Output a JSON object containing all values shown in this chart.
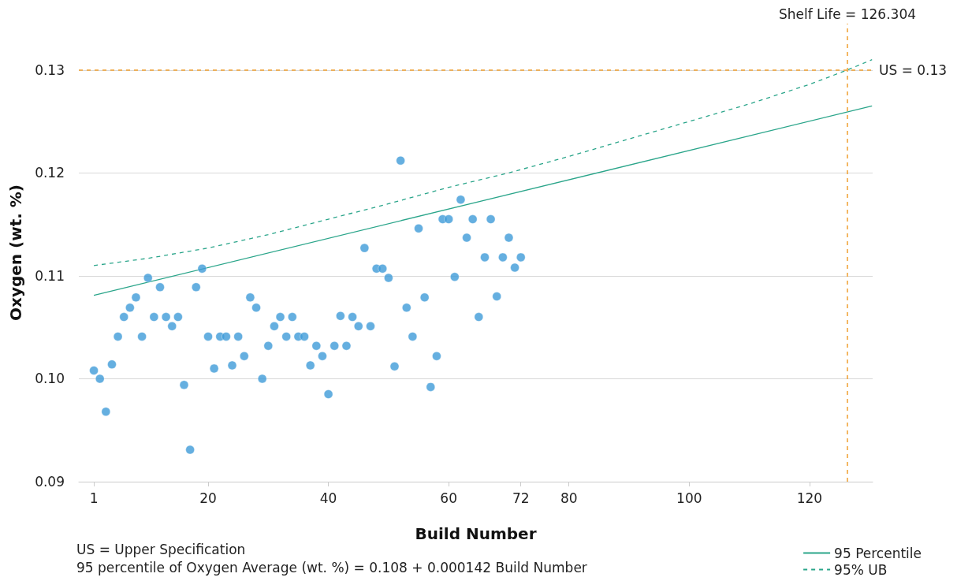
{
  "chart_data": {
    "type": "scatter",
    "xlabel": "Build Number",
    "ylabel": "Oxygen (wt. %)",
    "xlim": [
      -1.5,
      130.5
    ],
    "xticks": [
      1,
      20,
      40,
      60,
      72,
      80,
      100,
      120
    ],
    "ylim": [
      0.09,
      0.1345
    ],
    "yticks": [
      0.09,
      {
        "value": 0.1,
        "label": "0.10"
      },
      0.11,
      0.12,
      0.13
    ],
    "grid": "y",
    "legend": "bottom right",
    "series": [
      {
        "marker": "circle",
        "color": "#3f9bd8",
        "x": [
          1,
          2,
          3,
          4,
          5,
          6,
          7,
          8,
          9,
          10,
          11,
          12,
          13,
          14,
          15,
          16,
          17,
          18,
          19,
          20,
          21,
          22,
          23,
          24,
          25,
          26,
          27,
          28,
          29,
          30,
          31,
          32,
          33,
          34,
          35,
          36,
          37,
          38,
          39,
          40,
          41,
          42,
          43,
          44,
          45,
          46,
          47,
          48,
          49,
          50,
          51,
          52,
          53,
          54,
          55,
          56,
          57,
          58,
          59,
          60,
          61,
          62,
          63,
          64,
          65,
          66,
          67,
          68,
          69,
          70,
          71,
          72
        ],
        "values": [
          0.1008,
          0.1,
          0.0968,
          0.1014,
          0.1041,
          0.106,
          0.1069,
          0.1079,
          0.1041,
          0.1098,
          0.106,
          0.1089,
          0.106,
          0.1051,
          0.106,
          0.0994,
          0.0931,
          0.1089,
          0.1107,
          0.1041,
          0.101,
          0.1041,
          0.1041,
          0.1013,
          0.1041,
          0.1022,
          0.1079,
          0.1069,
          0.1,
          0.1032,
          0.1051,
          0.106,
          0.1041,
          0.106,
          0.1041,
          0.1041,
          0.1013,
          0.1032,
          0.1022,
          0.0985,
          0.1032,
          0.1061,
          0.1032,
          0.106,
          0.1051,
          0.1127,
          0.1051,
          0.1107,
          0.1107,
          0.1098,
          0.1012,
          0.1212,
          0.1069,
          0.1041,
          0.1146,
          0.1079,
          0.0992,
          0.1022,
          0.1155,
          0.1155,
          0.1099,
          0.1174,
          0.1137,
          0.1155,
          0.106,
          0.1118,
          0.1155,
          0.108,
          0.1118,
          0.1137,
          0.1108,
          0.1118
        ]
      },
      {
        "type": "line",
        "marker": "none",
        "name": "95 Percentile",
        "color": "#2aa58a",
        "line_style": "solid",
        "x": [
          1,
          130.4
        ],
        "values": [
          0.1081,
          0.1265
        ]
      },
      {
        "type": "line",
        "marker": "none",
        "name": "95% UB",
        "color": "#2aa58a",
        "line_style": "dashed",
        "x": [
          1,
          10,
          20,
          30,
          40,
          50,
          60,
          70,
          80,
          90,
          100,
          110,
          120,
          126.3,
          130.4
        ],
        "values": [
          0.111,
          0.1117,
          0.1127,
          0.114,
          0.1155,
          0.117,
          0.1186,
          0.12,
          0.1216,
          0.1233,
          0.125,
          0.1267,
          0.1286,
          0.13,
          0.131
        ]
      }
    ],
    "ref_lines": [
      {
        "axis": "y",
        "value": 0.13,
        "label": "US = 0.13",
        "color": "#f0a030",
        "line_style": "dashed"
      },
      {
        "axis": "x",
        "value": 126.304,
        "label": "Shelf Life = 126.304",
        "color": "#f0a030",
        "line_style": "dashed"
      }
    ],
    "annotations": [
      "US = Upper Specification",
      "95 percentile of Oxygen Average (wt. %) = 0.108 + 0.000142 Build Number"
    ]
  }
}
